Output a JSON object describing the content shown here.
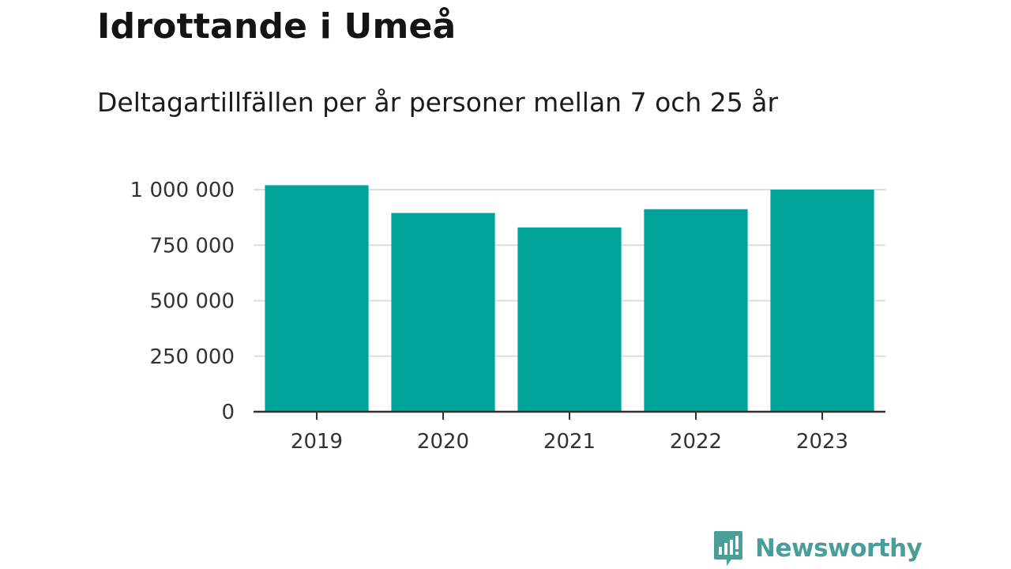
{
  "header": {
    "title": "Idrottande i Umeå",
    "subtitle": "Deltagartillfällen per år personer mellan 7 och 25 år"
  },
  "chart_data": {
    "type": "bar",
    "categories": [
      "2019",
      "2020",
      "2021",
      "2022",
      "2023"
    ],
    "values": [
      1020000,
      895000,
      830000,
      912000,
      1000000
    ],
    "title": "Idrottande i Umeå",
    "subtitle": "Deltagartillfällen per år personer mellan 7 och 25 år",
    "xlabel": "",
    "ylabel": "",
    "ylim": [
      0,
      1000000
    ],
    "yticks": [
      0,
      250000,
      500000,
      750000,
      1000000
    ],
    "ytick_labels": [
      "0",
      "250 000",
      "500 000",
      "750 000",
      "1 000 000"
    ],
    "grid": true,
    "legend": "none",
    "bar_color": "#00a49a"
  },
  "branding": {
    "name": "Newsworthy",
    "icon": "newsworthy-chart-icon",
    "color": "#4a9e98"
  },
  "colors": {
    "bar": "#00a49a",
    "grid": "#dddddd",
    "axis": "#333333",
    "brand": "#4a9e98"
  }
}
